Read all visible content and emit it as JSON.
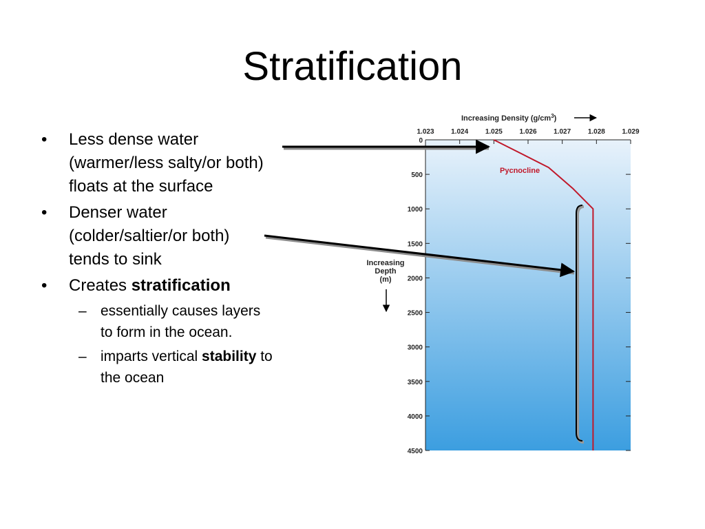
{
  "slide": {
    "title": "Stratification",
    "bullets": [
      {
        "lines": [
          "Less dense water",
          "(warmer/less salty/or both)",
          "floats at the surface"
        ]
      },
      {
        "lines": [
          "Denser water",
          "(colder/saltier/or both)",
          "tends to sink"
        ]
      },
      {
        "prefix": "Creates ",
        "bold": "stratification",
        "sub": [
          {
            "lines": [
              "essentially causes layers",
              "to form in the ocean."
            ]
          },
          {
            "prefix": "imparts vertical ",
            "bold": "stability",
            "suffix": " to",
            "line2": "the ocean"
          }
        ]
      }
    ],
    "bullet_symbol": "•",
    "dash_symbol": "–"
  },
  "figure": {
    "x_title_main": "Increasing Density (g/cm",
    "x_title_sup": "3",
    "x_title_close": ")",
    "x_ticks": [
      "1.023",
      "1.024",
      "1.025",
      "1.026",
      "1.027",
      "1.028",
      "1.029"
    ],
    "y_ticks": [
      "0",
      "500",
      "1000",
      "1500",
      "2000",
      "2500",
      "3000",
      "3500",
      "4000",
      "4500"
    ],
    "y_title": [
      "Increasing",
      "Depth",
      "(m)"
    ],
    "curve_label": "Pycnocline",
    "curve_color": "#c0182a",
    "water_top_color": "#e8f2fb",
    "water_bottom_color": "#3c9ee0",
    "profile": {
      "density": [
        1.025,
        1.0258,
        1.0266,
        1.0273,
        1.0278,
        1.0279,
        1.0279
      ],
      "depth": [
        0,
        200,
        400,
        700,
        950,
        1000,
        4500
      ]
    }
  }
}
